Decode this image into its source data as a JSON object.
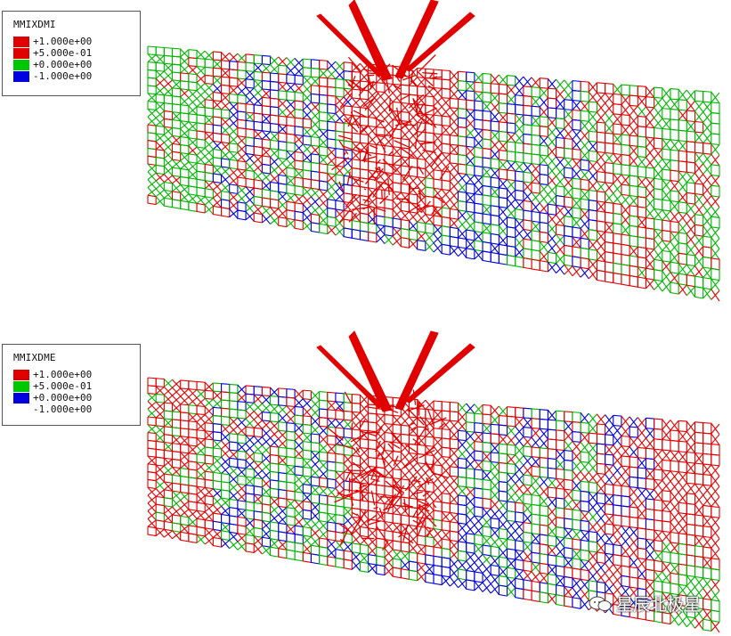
{
  "panels": [
    {
      "legend_title": "MMIXDMI",
      "legend_entries": [
        {
          "label": "+1.000e+00",
          "color": "#e00000"
        },
        {
          "label": "+5.000e-01",
          "color": "#00c800"
        },
        {
          "label": "+0.000e+00",
          "color": "#0000e0"
        },
        {
          "label": "-1.000e+00",
          "color": ""
        }
      ]
    },
    {
      "legend_title": "MMIXDME",
      "legend_entries": [
        {
          "label": "+1.000e+00",
          "color": "#e00000"
        },
        {
          "label": "+5.000e-01",
          "color": "#00c800"
        },
        {
          "label": "+0.000e+00",
          "color": "#0000e0"
        },
        {
          "label": "-1.000e+00",
          "color": ""
        }
      ]
    }
  ],
  "colors": {
    "red": "#e00000",
    "green": "#00b400",
    "blue": "#0000dc",
    "white": "#ffffff"
  },
  "watermark": {
    "text": "星辰北极星",
    "icon": "wechat-icon"
  }
}
